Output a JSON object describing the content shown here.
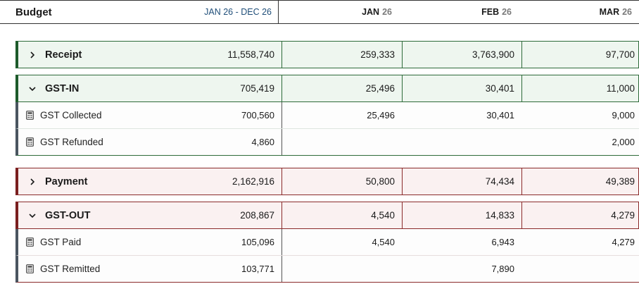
{
  "header": {
    "title": "Budget",
    "range": "JAN 26 - DEC 26",
    "months": [
      {
        "mon": "JAN",
        "yr": "26"
      },
      {
        "mon": "FEB",
        "yr": "26"
      },
      {
        "mon": "MAR",
        "yr": "26"
      }
    ]
  },
  "receipt": {
    "label": "Receipt",
    "total": "11,558,740",
    "m": [
      "259,333",
      "3,763,900",
      "97,700"
    ]
  },
  "gst_in": {
    "label": "GST-IN",
    "total": "705,419",
    "m": [
      "25,496",
      "30,401",
      "11,000"
    ]
  },
  "gst_collected": {
    "label": "GST Collected",
    "total": "700,560",
    "m": [
      "25,496",
      "30,401",
      "9,000"
    ]
  },
  "gst_refunded": {
    "label": "GST Refunded",
    "total": "4,860",
    "m": [
      "",
      "",
      "2,000"
    ]
  },
  "payment": {
    "label": "Payment",
    "total": "2,162,916",
    "m": [
      "50,800",
      "74,434",
      "49,389"
    ]
  },
  "gst_out": {
    "label": "GST-OUT",
    "total": "208,867",
    "m": [
      "4,540",
      "14,833",
      "4,279"
    ]
  },
  "gst_paid": {
    "label": "GST Paid",
    "total": "105,096",
    "m": [
      "4,540",
      "6,943",
      "4,279"
    ]
  },
  "gst_remitted": {
    "label": "GST Remitted",
    "total": "103,771",
    "m": [
      "",
      "7,890",
      ""
    ]
  },
  "colors": {
    "receipt_accent": "#1d5a2b",
    "payment_accent": "#7a1f1f",
    "range_text": "#1f4e79"
  }
}
